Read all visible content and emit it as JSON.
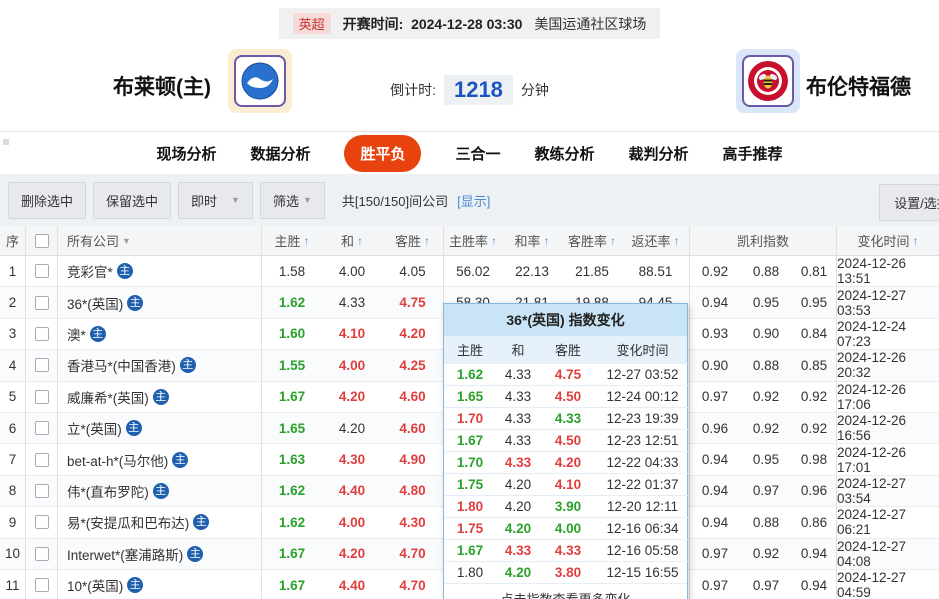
{
  "colors": {
    "accent_orange": "#e8430e",
    "odds_green": "#2aa12a",
    "odds_red": "#e03e3e",
    "link_blue": "#4a86d8",
    "badge_blue": "#1e5fae",
    "countdown_blue": "#1c55c0"
  },
  "top_bar": {
    "league": "英超",
    "kickoff_label": "开赛时间:",
    "kickoff_time": "2024-12-28 03:30",
    "venue": "美国运通社区球场"
  },
  "match": {
    "home_name": "布莱顿(主)",
    "away_name": "布伦特福德",
    "countdown_label": "倒计时:",
    "countdown_value": "1218",
    "countdown_unit": "分钟"
  },
  "tabs": [
    {
      "label": "现场分析",
      "active": false
    },
    {
      "label": "数据分析",
      "active": false
    },
    {
      "label": "胜平负",
      "active": true
    },
    {
      "label": "三合一",
      "active": false
    },
    {
      "label": "教练分析",
      "active": false
    },
    {
      "label": "裁判分析",
      "active": false
    },
    {
      "label": "高手推荐",
      "active": false
    }
  ],
  "toolbar": {
    "delete_btn": "删除选中",
    "keep_btn": "保留选中",
    "live_dropdown": "即时",
    "filter_dropdown": "筛选",
    "count_text": "共[150/150]间公司",
    "show_link": "[显示]",
    "settings_btn": "设置/选择"
  },
  "table": {
    "headers": {
      "seq": "序",
      "company": "所有公司",
      "home": "主胜",
      "draw": "和",
      "away": "客胜",
      "home_rate": "主胜率",
      "draw_rate": "和率",
      "away_rate": "客胜率",
      "return_rate": "返还率",
      "kelly": "凯利指数",
      "change_time": "变化时间"
    },
    "badge_label": "主",
    "rows": [
      {
        "no": "1",
        "name": "竞彩官*",
        "odds": [
          [
            "1.58",
            "k"
          ],
          [
            "4.00",
            "k"
          ],
          [
            "4.05",
            "k"
          ]
        ],
        "rates": [
          "56.02",
          "22.13",
          "21.85",
          "88.51"
        ],
        "kelly": [
          "0.92",
          "0.88",
          "0.81"
        ],
        "time": "2024-12-26 13:51"
      },
      {
        "no": "2",
        "name": "36*(英国)",
        "odds": [
          [
            "1.62",
            "g"
          ],
          [
            "4.33",
            "k"
          ],
          [
            "4.75",
            "r"
          ]
        ],
        "rates": [
          "58.30",
          "21.81",
          "19.88",
          "94.45"
        ],
        "kelly": [
          "0.94",
          "0.95",
          "0.95"
        ],
        "time": "2024-12-27 03:53"
      },
      {
        "no": "3",
        "name": "澳*",
        "odds": [
          [
            "1.60",
            "g"
          ],
          [
            "4.10",
            "r"
          ],
          [
            "4.20",
            "r"
          ]
        ],
        "rates": [
          "",
          "",
          "",
          ""
        ],
        "kelly": [
          "0.93",
          "0.90",
          "0.84"
        ],
        "time": "2024-12-24 07:23"
      },
      {
        "no": "4",
        "name": "香港马*(中国香港)",
        "odds": [
          [
            "1.55",
            "g"
          ],
          [
            "4.00",
            "r"
          ],
          [
            "4.25",
            "r"
          ]
        ],
        "rates": [
          "",
          "",
          "",
          ""
        ],
        "kelly": [
          "0.90",
          "0.88",
          "0.85"
        ],
        "time": "2024-12-26 20:32"
      },
      {
        "no": "5",
        "name": "威廉希*(英国)",
        "odds": [
          [
            "1.67",
            "g"
          ],
          [
            "4.20",
            "r"
          ],
          [
            "4.60",
            "r"
          ]
        ],
        "rates": [
          "",
          "",
          "",
          ""
        ],
        "kelly": [
          "0.97",
          "0.92",
          "0.92"
        ],
        "time": "2024-12-26 17:06"
      },
      {
        "no": "6",
        "name": "立*(英国)",
        "odds": [
          [
            "1.65",
            "g"
          ],
          [
            "4.20",
            "k"
          ],
          [
            "4.60",
            "r"
          ]
        ],
        "rates": [
          "",
          "",
          "",
          ""
        ],
        "kelly": [
          "0.96",
          "0.92",
          "0.92"
        ],
        "time": "2024-12-26 16:56"
      },
      {
        "no": "7",
        "name": "bet-at-h*(马尔他)",
        "odds": [
          [
            "1.63",
            "g"
          ],
          [
            "4.30",
            "r"
          ],
          [
            "4.90",
            "r"
          ]
        ],
        "rates": [
          "",
          "",
          "",
          ""
        ],
        "kelly": [
          "0.94",
          "0.95",
          "0.98"
        ],
        "time": "2024-12-26 17:01"
      },
      {
        "no": "8",
        "name": "伟*(直布罗陀)",
        "odds": [
          [
            "1.62",
            "g"
          ],
          [
            "4.40",
            "r"
          ],
          [
            "4.80",
            "r"
          ]
        ],
        "rates": [
          "",
          "",
          "",
          ""
        ],
        "kelly": [
          "0.94",
          "0.97",
          "0.96"
        ],
        "time": "2024-12-27 03:54"
      },
      {
        "no": "9",
        "name": "易*(安提瓜和巴布达)",
        "odds": [
          [
            "1.62",
            "g"
          ],
          [
            "4.00",
            "r"
          ],
          [
            "4.30",
            "r"
          ]
        ],
        "rates": [
          "",
          "",
          "",
          ""
        ],
        "kelly": [
          "0.94",
          "0.88",
          "0.86"
        ],
        "time": "2024-12-27 06:21"
      },
      {
        "no": "10",
        "name": "Interwet*(塞浦路斯)",
        "odds": [
          [
            "1.67",
            "g"
          ],
          [
            "4.20",
            "r"
          ],
          [
            "4.70",
            "r"
          ]
        ],
        "rates": [
          "",
          "",
          "",
          ""
        ],
        "kelly": [
          "0.97",
          "0.92",
          "0.94"
        ],
        "time": "2024-12-27 04:08"
      },
      {
        "no": "11",
        "name": "10*(英国)",
        "odds": [
          [
            "1.67",
            "g"
          ],
          [
            "4.40",
            "r"
          ],
          [
            "4.70",
            "r"
          ]
        ],
        "rates": [
          "",
          "",
          "",
          ""
        ],
        "kelly": [
          "0.97",
          "0.97",
          "0.94"
        ],
        "time": "2024-12-27 04:59"
      }
    ]
  },
  "popup": {
    "title": "36*(英国) 指数变化",
    "headers": [
      "主胜",
      "和",
      "客胜",
      "变化时间"
    ],
    "rows": [
      [
        [
          "1.62",
          "g"
        ],
        [
          "4.33",
          "k"
        ],
        [
          "4.75",
          "r"
        ],
        "12-27 03:52"
      ],
      [
        [
          "1.65",
          "g"
        ],
        [
          "4.33",
          "k"
        ],
        [
          "4.50",
          "r"
        ],
        "12-24 00:12"
      ],
      [
        [
          "1.70",
          "r"
        ],
        [
          "4.33",
          "k"
        ],
        [
          "4.33",
          "g"
        ],
        "12-23 19:39"
      ],
      [
        [
          "1.67",
          "g"
        ],
        [
          "4.33",
          "k"
        ],
        [
          "4.50",
          "r"
        ],
        "12-23 12:51"
      ],
      [
        [
          "1.70",
          "g"
        ],
        [
          "4.33",
          "r"
        ],
        [
          "4.20",
          "r"
        ],
        "12-22 04:33"
      ],
      [
        [
          "1.75",
          "g"
        ],
        [
          "4.20",
          "k"
        ],
        [
          "4.10",
          "r"
        ],
        "12-22 01:37"
      ],
      [
        [
          "1.80",
          "r"
        ],
        [
          "4.20",
          "k"
        ],
        [
          "3.90",
          "g"
        ],
        "12-20 12:11"
      ],
      [
        [
          "1.75",
          "r"
        ],
        [
          "4.20",
          "g"
        ],
        [
          "4.00",
          "g"
        ],
        "12-16 06:34"
      ],
      [
        [
          "1.67",
          "g"
        ],
        [
          "4.33",
          "r"
        ],
        [
          "4.33",
          "r"
        ],
        "12-16 05:58"
      ],
      [
        [
          "1.80",
          "k"
        ],
        [
          "4.20",
          "g"
        ],
        [
          "3.80",
          "r"
        ],
        "12-15 16:55"
      ]
    ],
    "footer": "点击指数查看更多变化"
  }
}
